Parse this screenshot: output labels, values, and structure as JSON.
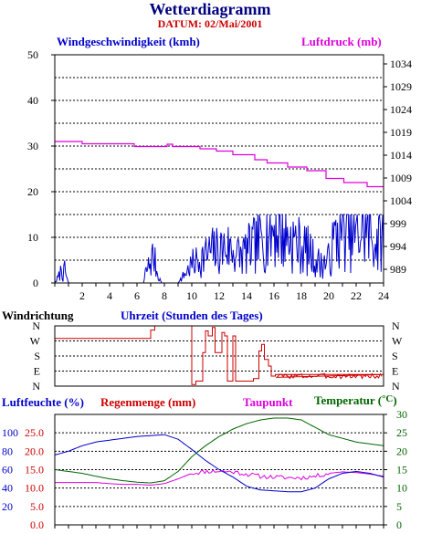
{
  "header": {
    "title": "Wetterdiagramm",
    "date_label": "DATUM: 02/Mai/2001"
  },
  "colors": {
    "wind": "#0000cc",
    "pressure": "#dd00dd",
    "direction": "#cc0000",
    "humidity": "#0000cc",
    "rain": "#cc0000",
    "dewpoint": "#dd00dd",
    "temperature": "#006600",
    "frame": "#000000"
  },
  "chart_data": [
    {
      "id": "wind_pressure",
      "type": "line",
      "left_label": "Windgeschwindigkeit (kmh)",
      "right_label": "Luftdruck (mb)",
      "y_ticks_left": [
        "0",
        "10",
        "20",
        "30",
        "40",
        "50"
      ],
      "y_ticks_right": [
        "989",
        "994",
        "999",
        "1004",
        "1009",
        "1014",
        "1019",
        "1024",
        "1029",
        "1034"
      ],
      "x_ticks": [
        "2",
        "4",
        "6",
        "8",
        "10",
        "12",
        "14",
        "16",
        "18",
        "20",
        "22",
        "24"
      ],
      "xlim": [
        0,
        24
      ],
      "ylim_left": [
        0,
        50
      ],
      "ylim_right": [
        986,
        1036
      ],
      "grid": true,
      "series": [
        {
          "name": "Windgeschwindigkeit (kmh)",
          "axis": "left",
          "style": "noisy",
          "seed": 7,
          "x": [
            0,
            0.4,
            0.5,
            0.6,
            0.7,
            1.0,
            6.5,
            6.6,
            6.9,
            7.2,
            7.5,
            7.8,
            8.0,
            8.5,
            9.0,
            9.5,
            10.0,
            10.5,
            11.0,
            11.5,
            12.0,
            12.5,
            13.0,
            13.5,
            14.0,
            14.5,
            15.0,
            15.5,
            16.0,
            16.5,
            17.0,
            17.5,
            18.0,
            18.5,
            19.0,
            19.5,
            20.0,
            20.5,
            21.0,
            21.5,
            22.0,
            22.5,
            23.0,
            23.5,
            24.0
          ],
          "y": [
            0,
            2,
            4,
            1,
            3,
            0,
            0,
            2,
            4,
            6,
            2,
            0,
            0,
            0,
            0,
            2,
            4,
            5,
            6,
            7,
            7,
            8,
            7,
            6,
            7,
            8,
            9,
            11,
            12,
            11,
            10,
            9,
            8,
            7,
            5,
            4,
            5,
            10,
            12,
            11,
            10,
            12,
            11,
            9,
            10
          ]
        },
        {
          "name": "Luftdruck (mb)",
          "axis": "right",
          "style": "step",
          "x": [
            0,
            2.0,
            2.0,
            5.8,
            5.8,
            8.2,
            8.2,
            8.6,
            8.6,
            10.6,
            10.6,
            11.8,
            11.8,
            13.0,
            13.0,
            14.6,
            14.6,
            15.5,
            15.5,
            17.0,
            17.0,
            18.4,
            18.4,
            19.8,
            19.8,
            21.1,
            21.1,
            22.8,
            22.8,
            24.0
          ],
          "y": [
            1017.0,
            1017.0,
            1016.5,
            1016.5,
            1015.9,
            1015.9,
            1016.4,
            1016.4,
            1015.9,
            1015.9,
            1015.4,
            1015.4,
            1014.9,
            1014.9,
            1014.1,
            1014.1,
            1013.0,
            1013.0,
            1012.3,
            1012.3,
            1011.4,
            1011.4,
            1010.6,
            1010.6,
            1008.9,
            1008.9,
            1008.0,
            1008.0,
            1007.1,
            1007.1
          ]
        }
      ]
    },
    {
      "id": "direction",
      "type": "line",
      "left_label": "Windrichtung",
      "center_label": "Uhrzeit (Stunden des Tages)",
      "y_ticks": [
        "N",
        "E",
        "S",
        "W",
        "N"
      ],
      "xlim": [
        0,
        24
      ],
      "ylim": [
        0,
        360
      ],
      "grid": true,
      "series": [
        {
          "name": "Windrichtung",
          "style": "noisy_tail",
          "seed": 3,
          "x": [
            0,
            7.0,
            7.0,
            7.3,
            7.3,
            10.0,
            10.0,
            10.3,
            10.3,
            10.8,
            10.8,
            11.0,
            11.0,
            11.2,
            11.2,
            11.5,
            11.5,
            11.7,
            11.7,
            12.2,
            12.2,
            12.4,
            12.4,
            12.6,
            12.6,
            13.0,
            13.0,
            13.2,
            13.2,
            14.5,
            14.5,
            14.9,
            14.9,
            15.1,
            15.1,
            15.3,
            15.3,
            15.6,
            15.6,
            15.8,
            15.8,
            16.1,
            16.1,
            24.0
          ],
          "y": [
            285,
            285,
            335,
            335,
            360,
            360,
            10,
            10,
            30,
            30,
            200,
            200,
            330,
            330,
            300,
            300,
            350,
            350,
            200,
            200,
            320,
            320,
            300,
            300,
            30,
            30,
            300,
            300,
            30,
            30,
            45,
            45,
            210,
            210,
            250,
            250,
            160,
            160,
            120,
            120,
            60,
            60,
            70,
            70
          ]
        }
      ]
    },
    {
      "id": "humidity_temp",
      "type": "line",
      "labels": {
        "humidity": "Luftfeuchte (%)",
        "rain": "Regenmenge (mm)",
        "dewpoint": "Taupunkt",
        "temperature": "Temperatur ("
      },
      "temperature_unit": "°C",
      "temperature_close": ")",
      "y_ticks_humidity": [
        "20",
        "40",
        "60",
        "80",
        "100"
      ],
      "y_ticks_rain": [
        "0.0",
        "5.0",
        "10.0",
        "15.0",
        "20.0",
        "25.0"
      ],
      "y_ticks_temperature": [
        "0",
        "5",
        "10",
        "15",
        "20",
        "25",
        "30"
      ],
      "xlim": [
        0,
        24
      ],
      "ylim_rain": [
        0,
        30
      ],
      "ylim_humidity": [
        0,
        120
      ],
      "ylim_temperature": [
        0,
        30
      ],
      "grid": true,
      "series": [
        {
          "name": "Luftfeuchte (%)",
          "axis": "humidity",
          "x": [
            0,
            1,
            2,
            3,
            4,
            5,
            6,
            7,
            8,
            9,
            10,
            11,
            12,
            13,
            14,
            15,
            16,
            17,
            18,
            19,
            20,
            21,
            22,
            23,
            24
          ],
          "y": [
            76,
            80,
            86,
            90,
            92,
            94,
            96,
            97,
            98,
            93,
            82,
            70,
            60,
            52,
            42,
            38,
            37,
            36,
            36,
            40,
            50,
            56,
            58,
            56,
            52
          ]
        },
        {
          "name": "Regenmenge (mm)",
          "axis": "rain",
          "x": [
            0,
            24
          ],
          "y": [
            0,
            0
          ]
        },
        {
          "name": "Taupunkt",
          "axis": "temperature",
          "style": "noisy",
          "seed": 11,
          "x": [
            0,
            1,
            2,
            3,
            4,
            5,
            6,
            7,
            8,
            9,
            10,
            11,
            12,
            13,
            14,
            15,
            16,
            17,
            18,
            19,
            20,
            21,
            22,
            23,
            24
          ],
          "y": [
            11.5,
            11.5,
            11.5,
            11.5,
            11.2,
            11.0,
            11.0,
            10.8,
            11.2,
            12.5,
            14.0,
            14.5,
            14.6,
            14.4,
            13.8,
            13.2,
            13.0,
            12.8,
            12.8,
            13.2,
            14.0,
            14.4,
            14.2,
            13.8,
            13.2
          ]
        },
        {
          "name": "Temperatur",
          "axis": "temperature",
          "x": [
            0,
            1,
            2,
            3,
            4,
            5,
            6,
            7,
            8,
            9,
            10,
            11,
            12,
            13,
            14,
            15,
            16,
            17,
            18,
            19,
            20,
            21,
            22,
            23,
            24
          ],
          "y": [
            15.0,
            14.5,
            14.0,
            13.2,
            12.5,
            12.0,
            11.6,
            11.4,
            12.0,
            14.5,
            18.5,
            21.5,
            24.0,
            26.0,
            27.5,
            28.5,
            29.0,
            29.0,
            28.5,
            26.5,
            24.5,
            23.5,
            22.5,
            22.0,
            21.5
          ]
        }
      ]
    }
  ]
}
